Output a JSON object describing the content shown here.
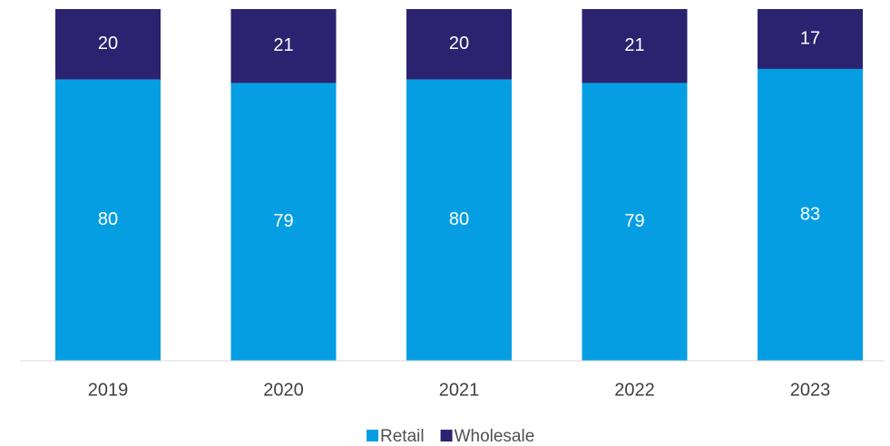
{
  "chart_data": {
    "type": "stacked_bar",
    "categories": [
      "2019",
      "2020",
      "2021",
      "2022",
      "2023"
    ],
    "series": [
      {
        "name": "Retail",
        "color": "#059ee3",
        "values": [
          80,
          79,
          80,
          79,
          83
        ]
      },
      {
        "name": "Wholesale",
        "color": "#2b2270",
        "values": [
          20,
          21,
          20,
          21,
          17
        ]
      }
    ],
    "ylim": [
      0,
      100
    ],
    "legend": "bottom"
  }
}
